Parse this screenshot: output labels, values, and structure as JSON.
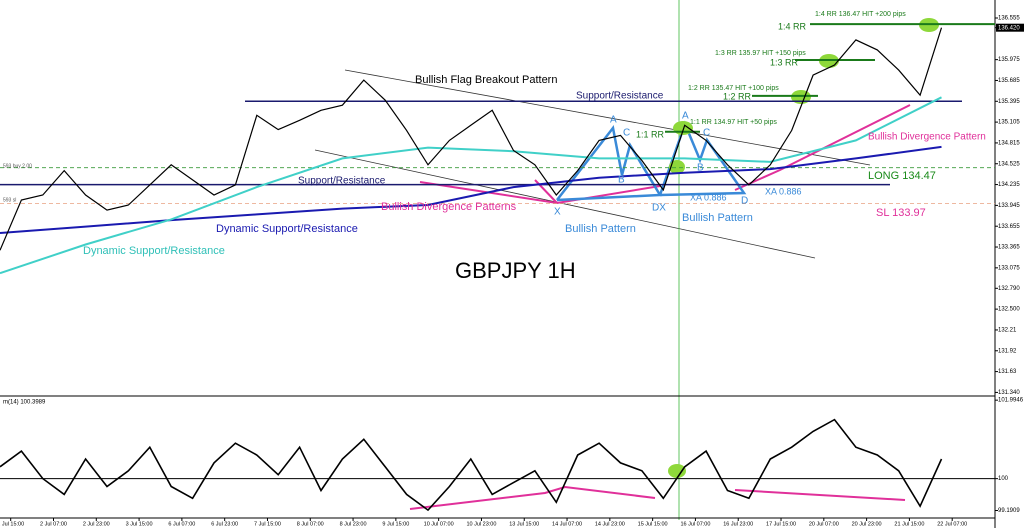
{
  "chart_data": {
    "type": "line",
    "title": "GBPJPY 1H",
    "xlim": [
      0,
      372
    ],
    "xticks": [
      {
        "value": 4,
        "label": "1 Jul 15:00"
      },
      {
        "value": 20,
        "label": "2 Jul 07:00"
      },
      {
        "value": 36,
        "label": "2 Jul 23:00"
      },
      {
        "value": 52,
        "label": "3 Jul 15:00"
      },
      {
        "value": 68,
        "label": "6 Jul 07:00"
      },
      {
        "value": 84,
        "label": "6 Jul 23:00"
      },
      {
        "value": 100,
        "label": "7 Jul 15:00"
      },
      {
        "value": 116,
        "label": "8 Jul 07:00"
      },
      {
        "value": 132,
        "label": "8 Jul 23:00"
      },
      {
        "value": 148,
        "label": "9 Jul 15:00"
      },
      {
        "value": 164,
        "label": "10 Jul 07:00"
      },
      {
        "value": 180,
        "label": "10 Jul 23:00"
      },
      {
        "value": 196,
        "label": "13 Jul 15:00"
      },
      {
        "value": 212,
        "label": "14 Jul 07:00"
      },
      {
        "value": 228,
        "label": "14 Jul 23:00"
      },
      {
        "value": 244,
        "label": "15 Jul 15:00"
      },
      {
        "value": 260,
        "label": "16 Jul 07:00"
      },
      {
        "value": 276,
        "label": "16 Jul 23:00"
      },
      {
        "value": 292,
        "label": "17 Jul 15:00"
      },
      {
        "value": 308,
        "label": "20 Jul 07:00"
      },
      {
        "value": 324,
        "label": "20 Jul 23:00"
      },
      {
        "value": 340,
        "label": "21 Jul 15:00"
      },
      {
        "value": 356,
        "label": "22 Jul 07:00"
      }
    ],
    "ylim": [
      131.29,
      136.75
    ],
    "yticks": [
      136.555,
      {
        "value": 136.42,
        "label": "136.420"
      },
      135.975,
      135.685,
      135.395,
      135.105,
      134.815,
      134.525,
      134.235,
      133.945,
      133.655,
      133.365,
      133.075,
      {
        "value": 132.79,
        "label": "132.790"
      },
      {
        "value": 132.5,
        "label": "132.500"
      },
      132.21,
      131.92,
      131.63,
      {
        "value": 131.34,
        "label": "131.340"
      }
    ],
    "series": [
      {
        "color": "#000000",
        "x": [
          0,
          8,
          16,
          24,
          32,
          40,
          48,
          56,
          64,
          72,
          80,
          88,
          96,
          104,
          112,
          120,
          128,
          136,
          144,
          152,
          160,
          168,
          176,
          184,
          192,
          200,
          208,
          216,
          224,
          232,
          240,
          248,
          256,
          264,
          272,
          280,
          288,
          296,
          304,
          312,
          320,
          328,
          336,
          344,
          352
        ],
        "values": [
          133.32,
          134.02,
          134.09,
          134.43,
          134.09,
          133.88,
          133.95,
          134.23,
          134.51,
          134.3,
          134.09,
          134.23,
          135.2,
          135.0,
          135.13,
          135.27,
          135.34,
          135.69,
          135.41,
          134.99,
          134.51,
          134.85,
          135.06,
          135.27,
          134.71,
          134.51,
          134.09,
          134.43,
          134.85,
          134.92,
          134.57,
          134.16,
          135.06,
          134.85,
          134.51,
          134.23,
          134.51,
          134.99,
          135.76,
          135.9,
          136.25,
          136.11,
          135.83,
          135.48,
          136.42
        ]
      },
      {
        "color": "#40d0c8",
        "x": [
          0,
          32,
          64,
          96,
          128,
          160,
          192,
          224,
          256,
          288,
          320,
          352
        ],
        "values": [
          133.0,
          133.4,
          133.75,
          134.2,
          134.6,
          134.75,
          134.7,
          134.6,
          134.6,
          134.55,
          134.85,
          135.45
        ]
      },
      {
        "color": "#1a1ab0",
        "x": [
          0,
          32,
          64,
          96,
          128,
          160,
          192,
          224,
          256,
          288,
          320,
          352
        ],
        "values": [
          133.56,
          133.65,
          133.74,
          133.82,
          133.9,
          133.95,
          134.2,
          134.33,
          134.4,
          134.45,
          134.6,
          134.76
        ]
      }
    ],
    "levels": [
      {
        "value": 135.395,
        "color": "#1a1a6e"
      },
      {
        "value": 134.235,
        "color": "#1a1a6e"
      },
      {
        "value": 136.47,
        "color": "#1a7a1a"
      },
      {
        "value": 135.97,
        "color": "#1a7a1a"
      },
      {
        "value": 135.47,
        "color": "#1a7a1a"
      },
      {
        "value": 134.97,
        "color": "#1a7a1a"
      },
      {
        "value": 134.47,
        "color": "#3a9a3a"
      },
      {
        "value": 133.97,
        "color": "#e8a080"
      }
    ],
    "order_labels": [
      "593 buy 2.00",
      "593 sl"
    ],
    "annotations": [
      {
        "text": "1:4 RR 136.47 HIT +200 pips",
        "color": "#1a7a1a"
      },
      {
        "text": "1:4 RR",
        "color": "#1a7a1a"
      },
      {
        "text": "1:3 RR 135.97 HIT +150 pips",
        "color": "#1a7a1a"
      },
      {
        "text": "1:3 RR",
        "color": "#1a7a1a"
      },
      {
        "text": "1:2 RR 135.47 HIT +100 pips",
        "color": "#1a7a1a"
      },
      {
        "text": "1:2 RR",
        "color": "#1a7a1a"
      },
      {
        "text": "1:1 RR 134.97 HIT +50 pips",
        "color": "#1a7a1a"
      },
      {
        "text": "1:1 RR",
        "color": "#1a7a1a"
      },
      {
        "text": "Bullish Flag Breakout Pattern",
        "color": "#000000"
      },
      {
        "text": "Support/Resistance",
        "color": "#1a1a6e"
      },
      {
        "text": "Support/Resistance",
        "color": "#1a1a6e"
      },
      {
        "text": "Bullish Divergence Patterns",
        "color": "#e0309a"
      },
      {
        "text": "Dynamic Support/Resistance",
        "color": "#1a1ab0"
      },
      {
        "text": "Dynamic Support/Resistance",
        "color": "#30c0b8"
      },
      {
        "text": "Bullish Pattern",
        "color": "#3a8ad8"
      },
      {
        "text": "Bullish Pattern",
        "color": "#3a8ad8"
      },
      {
        "text": "LONG 134.47",
        "color": "#1a8a1a"
      },
      {
        "text": "SL 133.97",
        "color": "#e0309a"
      },
      {
        "text": "Bullish Divergence Pattern",
        "color": "#e0309a"
      },
      {
        "text": "XA 0.886",
        "color": "#3a8ad8"
      },
      {
        "text": "XA 0.886",
        "color": "#3a8ad8"
      },
      {
        "text": "A",
        "color": "#3a8ad8"
      },
      {
        "text": "C",
        "color": "#3a8ad8"
      },
      {
        "text": "B",
        "color": "#3a8ad8"
      },
      {
        "text": "X",
        "color": "#3a8ad8"
      },
      {
        "text": "DX",
        "color": "#3a8ad8"
      },
      {
        "text": "A",
        "color": "#3a8ad8"
      },
      {
        "text": "C",
        "color": "#3a8ad8"
      },
      {
        "text": "B",
        "color": "#3a8ad8"
      },
      {
        "text": "D",
        "color": "#3a8ad8"
      }
    ],
    "indicator": {
      "label": "m(14) 100.3989",
      "color": "#000000",
      "ylim": [
        99.0,
        102.1
      ],
      "yticks": [
        101.9946,
        100,
        99.1909
      ],
      "x": [
        0,
        8,
        16,
        24,
        32,
        40,
        48,
        56,
        64,
        72,
        80,
        88,
        96,
        104,
        112,
        120,
        128,
        136,
        144,
        152,
        160,
        168,
        176,
        184,
        192,
        200,
        208,
        216,
        224,
        232,
        240,
        248,
        256,
        264,
        272,
        280,
        288,
        296,
        304,
        312,
        320,
        328,
        336,
        344,
        352
      ],
      "values": [
        100.3,
        100.7,
        100.0,
        99.6,
        100.5,
        99.8,
        100.2,
        100.8,
        99.8,
        99.5,
        100.4,
        100.9,
        100.6,
        100.1,
        100.8,
        99.7,
        100.5,
        101.0,
        100.3,
        99.6,
        99.2,
        99.8,
        100.5,
        99.6,
        99.9,
        100.2,
        99.4,
        100.6,
        100.9,
        100.4,
        100.2,
        99.5,
        100.3,
        100.7,
        99.7,
        99.5,
        100.5,
        100.8,
        101.2,
        101.5,
        100.8,
        100.6,
        100.2,
        99.3,
        100.5
      ]
    }
  }
}
